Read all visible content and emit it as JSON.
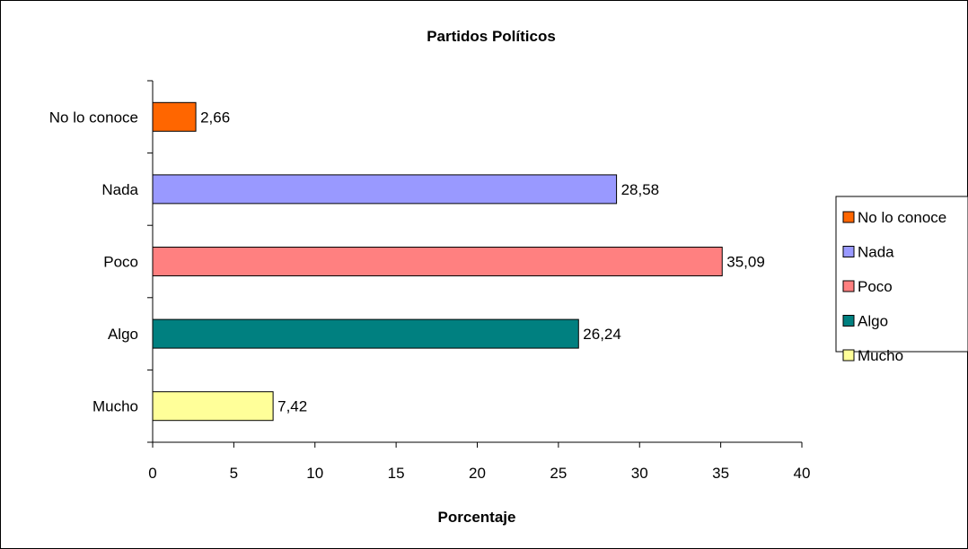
{
  "chart_data": {
    "type": "bar",
    "orientation": "horizontal",
    "title": "Partidos Políticos",
    "xlabel": "Porcentaje",
    "ylabel": "",
    "xlim": [
      0,
      40
    ],
    "xticks": [
      "0",
      "5",
      "10",
      "15",
      "20",
      "25",
      "30",
      "35",
      "40"
    ],
    "categories": [
      "No lo conoce",
      "Nada",
      "Poco",
      "Algo",
      "Mucho"
    ],
    "values": [
      2.66,
      28.58,
      35.09,
      26.24,
      7.42
    ],
    "value_labels": [
      "2,66",
      "28,58",
      "35,09",
      "26,24",
      "7,42"
    ],
    "colors": [
      "#ff6600",
      "#9999ff",
      "#ff8080",
      "#008080",
      "#ffff99"
    ],
    "grid": false,
    "legend": {
      "position": "right",
      "entries": [
        "No lo conoce",
        "Nada",
        "Poco",
        "Algo",
        "Mucho"
      ]
    }
  }
}
